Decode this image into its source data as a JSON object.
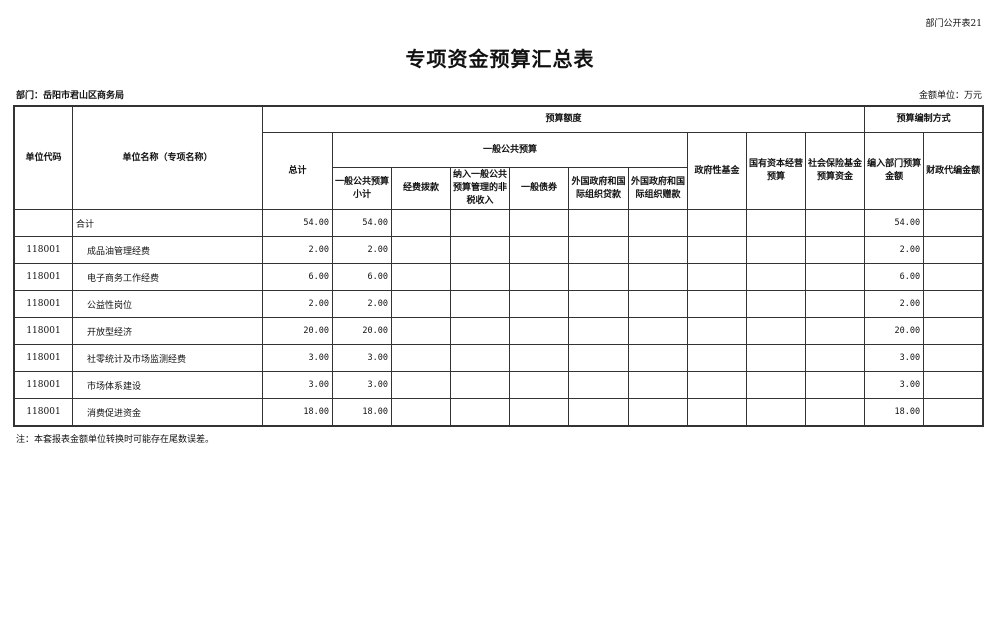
{
  "form_no": "部门公开表21",
  "title": "专项资金预算汇总表",
  "department": "部门：岳阳市君山区商务局",
  "unit": "金额单位：万元",
  "headers": {
    "code": "单位代码",
    "name": "单位名称（专项名称）",
    "budget_amount": "预算额度",
    "method": "预算编制方式",
    "total": "总计",
    "general": "一般公共预算",
    "gov_fund": "政府性基金",
    "state_capital": "国有资本经营预算",
    "social_insurance": "社会保险基金预算资金",
    "dept_budget": "编入部门预算金额",
    "fiscal_agent": "财政代编金额",
    "general_subtotal": "一般公共预算小计",
    "appropriation": "经费拨款",
    "non_tax": "纳入一般公共预算管理的非税收入",
    "bonds": "一般债券",
    "foreign_loans": "外国政府和国际组织贷款",
    "foreign_grants": "外国政府和国际组织赠款"
  },
  "rows": [
    {
      "code": "",
      "name": "合计",
      "total": "54.00",
      "subtotal": "54.00",
      "dept": "54.00"
    },
    {
      "code": "118001",
      "name": "成品油管理经费",
      "total": "2.00",
      "subtotal": "2.00",
      "dept": "2.00"
    },
    {
      "code": "118001",
      "name": "电子商务工作经费",
      "total": "6.00",
      "subtotal": "6.00",
      "dept": "6.00"
    },
    {
      "code": "118001",
      "name": "公益性岗位",
      "total": "2.00",
      "subtotal": "2.00",
      "dept": "2.00"
    },
    {
      "code": "118001",
      "name": "开放型经济",
      "total": "20.00",
      "subtotal": "20.00",
      "dept": "20.00"
    },
    {
      "code": "118001",
      "name": "社零统计及市场监测经费",
      "total": "3.00",
      "subtotal": "3.00",
      "dept": "3.00"
    },
    {
      "code": "118001",
      "name": "市场体系建设",
      "total": "3.00",
      "subtotal": "3.00",
      "dept": "3.00"
    },
    {
      "code": "118001",
      "name": "消费促进资金",
      "total": "18.00",
      "subtotal": "18.00",
      "dept": "18.00"
    }
  ],
  "note": "注：本套报表金额单位转换时可能存在尾数误差。"
}
